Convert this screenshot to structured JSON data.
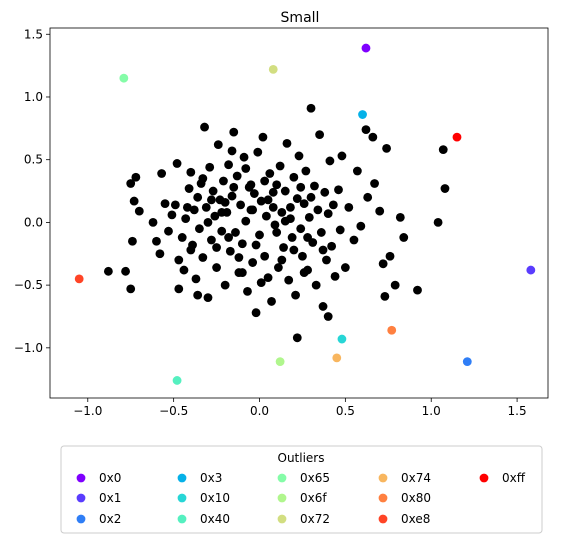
{
  "chart_data": {
    "type": "scatter",
    "title": "Small",
    "xlabel": "",
    "ylabel": "",
    "xlim": [
      -1.22,
      1.68
    ],
    "ylim": [
      -1.4,
      1.55
    ],
    "x_ticks": [
      -1.0,
      -0.5,
      0.0,
      0.5,
      1.0,
      1.5
    ],
    "y_ticks": [
      -1.0,
      -0.5,
      0.0,
      0.5,
      1.0,
      1.5
    ],
    "x_tick_labels": [
      "−1.0",
      "−0.5",
      "0.0",
      "0.5",
      "1.0",
      "1.5"
    ],
    "y_tick_labels": [
      "−1.0",
      "−0.5",
      "0.0",
      "0.5",
      "1.0",
      "1.5"
    ],
    "grid": false,
    "legend": {
      "title": "Outliers",
      "placement": "below-plot",
      "columns": 5,
      "entries": [
        {
          "label": "0x0",
          "color": "#7f00ff"
        },
        {
          "label": "0x1",
          "color": "#5a3cfe"
        },
        {
          "label": "0x2",
          "color": "#2f7ef6"
        },
        {
          "label": "0x3",
          "color": "#05b1e8"
        },
        {
          "label": "0x10",
          "color": "#27d6d6"
        },
        {
          "label": "0x40",
          "color": "#55f0c0"
        },
        {
          "label": "0x65",
          "color": "#85fca8"
        },
        {
          "label": "0x6f",
          "color": "#b0f68d"
        },
        {
          "label": "0x72",
          "color": "#d2de81"
        },
        {
          "label": "0x74",
          "color": "#f8b65f"
        },
        {
          "label": "0x80",
          "color": "#ff8040"
        },
        {
          "label": "0xe8",
          "color": "#ff4426"
        },
        {
          "label": "0xff",
          "color": "#ff0000"
        }
      ]
    },
    "outliers": [
      {
        "label": "0x0",
        "x": 0.62,
        "y": 1.39,
        "color": "#7f00ff"
      },
      {
        "label": "0x1",
        "x": 1.58,
        "y": -0.38,
        "color": "#5a3cfe"
      },
      {
        "label": "0x2",
        "x": 1.21,
        "y": -1.11,
        "color": "#2f7ef6"
      },
      {
        "label": "0x3",
        "x": 0.6,
        "y": 0.86,
        "color": "#05b1e8"
      },
      {
        "label": "0x10",
        "x": 0.48,
        "y": -0.93,
        "color": "#27d6d6"
      },
      {
        "label": "0x40",
        "x": -0.48,
        "y": -1.26,
        "color": "#55f0c0"
      },
      {
        "label": "0x65",
        "x": -0.79,
        "y": 1.15,
        "color": "#85fca8"
      },
      {
        "label": "0x6f",
        "x": 0.12,
        "y": -1.11,
        "color": "#b0f68d"
      },
      {
        "label": "0x72",
        "x": 0.08,
        "y": 1.22,
        "color": "#d2de81"
      },
      {
        "label": "0x74",
        "x": 0.45,
        "y": -1.08,
        "color": "#f8b65f"
      },
      {
        "label": "0x80",
        "x": 0.77,
        "y": -0.86,
        "color": "#ff8040"
      },
      {
        "label": "0xe8",
        "x": -1.05,
        "y": -0.45,
        "color": "#ff4426"
      },
      {
        "label": "0xff",
        "x": 1.15,
        "y": 0.68,
        "color": "#ff0000"
      }
    ],
    "inliers": {
      "color": "#000000",
      "points": [
        [
          -0.88,
          -0.39
        ],
        [
          -0.78,
          -0.39
        ],
        [
          -0.75,
          -0.53
        ],
        [
          -0.75,
          0.31
        ],
        [
          -0.72,
          0.36
        ],
        [
          -0.7,
          0.09
        ],
        [
          -0.73,
          0.17
        ],
        [
          -0.74,
          -0.15
        ],
        [
          -0.62,
          0.0
        ],
        [
          -0.6,
          -0.15
        ],
        [
          -0.58,
          -0.25
        ],
        [
          -0.57,
          0.39
        ],
        [
          -0.55,
          0.15
        ],
        [
          -0.53,
          -0.07
        ],
        [
          -0.51,
          0.06
        ],
        [
          -0.49,
          0.14
        ],
        [
          -0.48,
          0.47
        ],
        [
          -0.47,
          -0.3
        ],
        [
          -0.45,
          -0.12
        ],
        [
          -0.44,
          -0.38
        ],
        [
          -0.43,
          0.03
        ],
        [
          -0.41,
          0.27
        ],
        [
          -0.4,
          0.4
        ],
        [
          -0.39,
          -0.18
        ],
        [
          -0.38,
          0.1
        ],
        [
          -0.37,
          -0.45
        ],
        [
          -0.36,
          0.2
        ],
        [
          -0.35,
          -0.05
        ],
        [
          -0.34,
          0.31
        ],
        [
          -0.33,
          -0.28
        ],
        [
          -0.32,
          0.76
        ],
        [
          -0.31,
          0.12
        ],
        [
          -0.3,
          -0.6
        ],
        [
          -0.29,
          0.44
        ],
        [
          -0.28,
          -0.14
        ],
        [
          -0.27,
          0.25
        ],
        [
          -0.26,
          0.05
        ],
        [
          -0.25,
          -0.36
        ],
        [
          -0.24,
          0.62
        ],
        [
          -0.23,
          0.18
        ],
        [
          -0.22,
          -0.07
        ],
        [
          -0.21,
          0.33
        ],
        [
          -0.2,
          -0.5
        ],
        [
          -0.19,
          0.08
        ],
        [
          -0.18,
          0.46
        ],
        [
          -0.17,
          -0.23
        ],
        [
          -0.16,
          0.21
        ],
        [
          -0.15,
          0.72
        ],
        [
          -0.14,
          -0.08
        ],
        [
          -0.13,
          0.37
        ],
        [
          -0.12,
          -0.4
        ],
        [
          -0.11,
          0.14
        ],
        [
          -0.1,
          -0.17
        ],
        [
          -0.09,
          0.52
        ],
        [
          -0.08,
          0.01
        ],
        [
          -0.07,
          -0.55
        ],
        [
          -0.06,
          0.28
        ],
        [
          -0.05,
          0.1
        ],
        [
          -0.04,
          -0.32
        ],
        [
          -0.03,
          0.23
        ],
        [
          -0.02,
          -0.72
        ],
        [
          -0.01,
          0.56
        ],
        [
          0.0,
          -0.1
        ],
        [
          0.01,
          0.17
        ],
        [
          0.02,
          0.68
        ],
        [
          0.03,
          -0.27
        ],
        [
          0.04,
          0.05
        ],
        [
          0.05,
          -0.44
        ],
        [
          0.06,
          0.39
        ],
        [
          0.07,
          -0.63
        ],
        [
          0.08,
          0.12
        ],
        [
          0.09,
          -0.02
        ],
        [
          0.1,
          0.3
        ],
        [
          0.11,
          -0.36
        ],
        [
          0.12,
          0.45
        ],
        [
          0.13,
          0.08
        ],
        [
          0.14,
          -0.2
        ],
        [
          0.15,
          0.25
        ],
        [
          0.16,
          0.63
        ],
        [
          0.17,
          -0.46
        ],
        [
          0.18,
          0.03
        ],
        [
          0.19,
          -0.12
        ],
        [
          0.2,
          0.36
        ],
        [
          0.21,
          -0.58
        ],
        [
          0.22,
          0.19
        ],
        [
          0.23,
          0.53
        ],
        [
          0.24,
          -0.05
        ],
        [
          0.25,
          -0.27
        ],
        [
          0.26,
          0.15
        ],
        [
          0.27,
          0.41
        ],
        [
          0.28,
          -0.38
        ],
        [
          0.29,
          0.04
        ],
        [
          0.3,
          0.2
        ],
        [
          0.31,
          -0.16
        ],
        [
          0.32,
          0.29
        ],
        [
          0.33,
          -0.5
        ],
        [
          0.34,
          0.1
        ],
        [
          0.35,
          0.7
        ],
        [
          0.36,
          -0.08
        ],
        [
          0.37,
          -0.67
        ],
        [
          0.38,
          0.24
        ],
        [
          0.39,
          -0.3
        ],
        [
          0.4,
          0.07
        ],
        [
          0.41,
          0.49
        ],
        [
          0.42,
          -0.19
        ],
        [
          0.43,
          0.14
        ],
        [
          0.44,
          -0.43
        ],
        [
          0.46,
          0.26
        ],
        [
          0.47,
          -0.06
        ],
        [
          0.48,
          0.53
        ],
        [
          0.5,
          -0.36
        ],
        [
          0.52,
          0.12
        ],
        [
          0.55,
          -0.14
        ],
        [
          0.57,
          0.41
        ],
        [
          0.59,
          -0.03
        ],
        [
          0.62,
          0.74
        ],
        [
          0.63,
          0.2
        ],
        [
          0.66,
          0.68
        ],
        [
          0.67,
          0.31
        ],
        [
          0.7,
          0.09
        ],
        [
          0.72,
          -0.33
        ],
        [
          0.73,
          -0.59
        ],
        [
          0.74,
          0.59
        ],
        [
          0.76,
          -0.27
        ],
        [
          0.79,
          -0.5
        ],
        [
          0.82,
          0.04
        ],
        [
          0.84,
          -0.12
        ],
        [
          0.92,
          -0.54
        ],
        [
          1.04,
          0.0
        ],
        [
          1.07,
          0.58
        ],
        [
          1.08,
          0.27
        ],
        [
          -0.05,
          0.3
        ],
        [
          -0.22,
          0.08
        ],
        [
          -0.12,
          -0.28
        ],
        [
          0.05,
          0.18
        ],
        [
          -0.3,
          0.0
        ],
        [
          0.1,
          -0.08
        ],
        [
          -0.15,
          0.28
        ],
        [
          0.18,
          0.12
        ],
        [
          -0.02,
          -0.18
        ],
        [
          -0.28,
          0.18
        ],
        [
          0.24,
          0.28
        ],
        [
          -0.18,
          -0.12
        ],
        [
          0.13,
          -0.3
        ],
        [
          -0.08,
          0.43
        ],
        [
          0.28,
          -0.12
        ],
        [
          -0.4,
          -0.22
        ],
        [
          0.2,
          -0.22
        ],
        [
          -0.33,
          0.35
        ],
        [
          0.03,
          0.33
        ],
        [
          -0.25,
          -0.2
        ],
        [
          0.15,
          0.01
        ],
        [
          -0.04,
          0.1
        ],
        [
          0.08,
          0.24
        ],
        [
          -0.2,
          0.16
        ],
        [
          0.37,
          -0.22
        ],
        [
          -0.1,
          -0.4
        ],
        [
          0.01,
          -0.48
        ],
        [
          -0.42,
          0.12
        ],
        [
          0.26,
          -0.4
        ],
        [
          -0.36,
          -0.58
        ],
        [
          0.4,
          -0.75
        ],
        [
          -0.47,
          -0.53
        ],
        [
          0.22,
          -0.92
        ],
        [
          0.3,
          0.91
        ],
        [
          -0.16,
          0.57
        ]
      ]
    }
  }
}
